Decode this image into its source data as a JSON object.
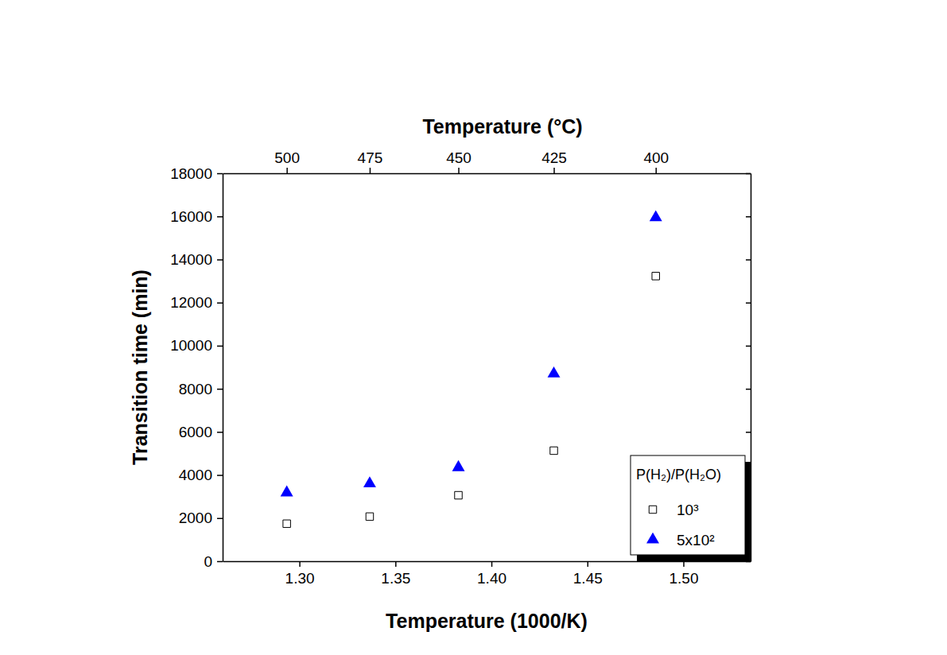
{
  "chart_data": {
    "type": "scatter",
    "xlabel": "Temperature (1000/K)",
    "ylabel": "Transition time (min)",
    "x2label": "Temperature (°C)",
    "x": [
      1.2934,
      1.3366,
      1.3828,
      1.4325,
      1.4856
    ],
    "series": [
      {
        "name": "10³",
        "color": "#000000",
        "marker": "open-square",
        "values": [
          1740,
          2070,
          3060,
          5130,
          13230
        ]
      },
      {
        "name": "5x10²",
        "color": "#0000ff",
        "marker": "triangle",
        "values": [
          3180,
          3600,
          4350,
          8700,
          15950
        ]
      }
    ],
    "legend_title": "P(H₂)/P(H₂O)",
    "legend": "bottom right",
    "xlim": [
      1.26,
      1.535
    ],
    "xticks": [
      {
        "value": 1.3,
        "label": "1.30"
      },
      {
        "value": 1.35,
        "label": "1.35"
      },
      {
        "value": 1.4,
        "label": "1.40"
      },
      {
        "value": 1.45,
        "label": "1.45"
      },
      {
        "value": 1.5,
        "label": "1.50"
      }
    ],
    "x2lim": [
      1.26,
      1.535
    ],
    "x2ticks": [
      {
        "value": 1.2934,
        "label": "500"
      },
      {
        "value": 1.3366,
        "label": "475"
      },
      {
        "value": 1.3828,
        "label": "450"
      },
      {
        "value": 1.4325,
        "label": "425"
      },
      {
        "value": 1.4856,
        "label": "400"
      }
    ],
    "ylim": [
      0,
      18000
    ],
    "yticks": [
      0,
      2000,
      4000,
      6000,
      8000,
      10000,
      12000,
      14000,
      16000,
      18000
    ],
    "grid": false
  }
}
